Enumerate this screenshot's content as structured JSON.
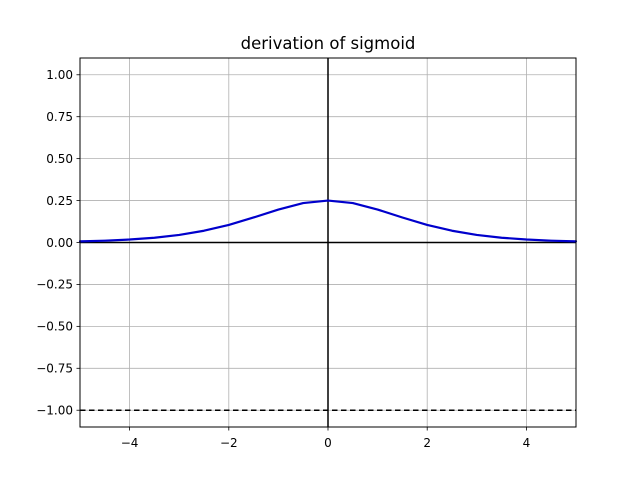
{
  "chart_data": {
    "type": "line",
    "title": "derivation of sigmoid",
    "xlabel": "",
    "ylabel": "",
    "xlim": [
      -5,
      5
    ],
    "ylim": [
      -1.1,
      1.1
    ],
    "grid": true,
    "x_ticks": [
      -4,
      -2,
      0,
      2,
      4
    ],
    "x_tick_labels": [
      "−4",
      "−2",
      "0",
      "2",
      "4"
    ],
    "y_ticks": [
      1.0,
      0.75,
      0.5,
      0.25,
      0.0,
      -0.25,
      -0.5,
      -0.75,
      -1.0
    ],
    "y_tick_labels": [
      "1.00",
      "0.75",
      "0.50",
      "0.25",
      "0.00",
      "−0.25",
      "−0.50",
      "−0.75",
      "−1.00"
    ],
    "series": [
      {
        "color": "#0000cc",
        "style": "solid",
        "x": [
          -5.0,
          -4.5,
          -4.0,
          -3.5,
          -3.0,
          -2.5,
          -2.0,
          -1.5,
          -1.0,
          -0.5,
          0.0,
          0.5,
          1.0,
          1.5,
          2.0,
          2.5,
          3.0,
          3.5,
          4.0,
          4.5,
          5.0
        ],
        "y": [
          0.0066,
          0.0108,
          0.0177,
          0.0285,
          0.0452,
          0.0701,
          0.105,
          0.1491,
          0.1966,
          0.235,
          0.25,
          0.235,
          0.1966,
          0.1491,
          0.105,
          0.0701,
          0.0452,
          0.0285,
          0.0177,
          0.0108,
          0.0066
        ]
      }
    ],
    "reference_lines": [
      {
        "orientation": "horizontal",
        "value": 0,
        "color": "#000000",
        "style": "solid"
      },
      {
        "orientation": "vertical",
        "value": 0,
        "color": "#000000",
        "style": "solid"
      },
      {
        "orientation": "horizontal",
        "value": -1,
        "color": "#000000",
        "style": "dashed"
      }
    ]
  }
}
